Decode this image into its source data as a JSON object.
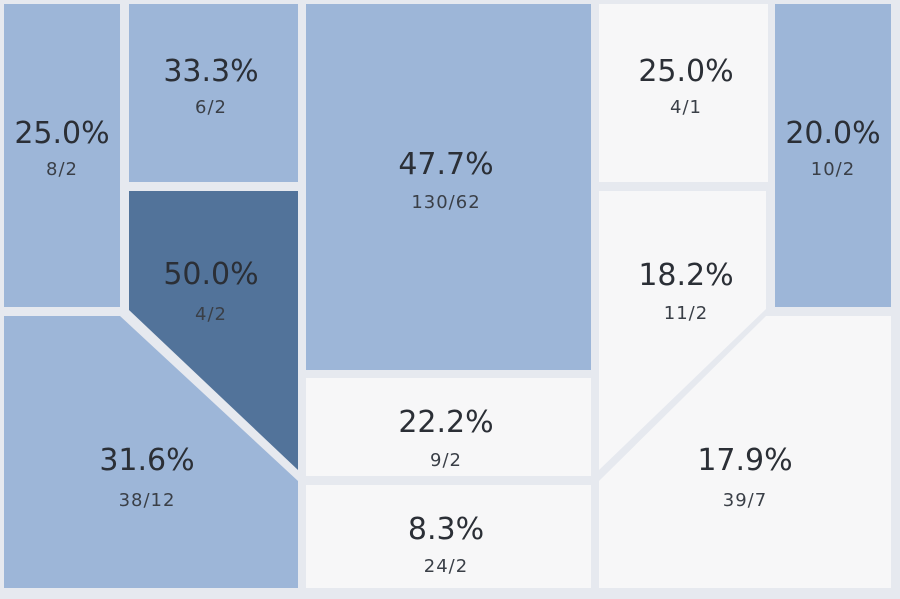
{
  "colors": {
    "background": "#e6e9ef",
    "blue": "#9db6d8",
    "dark_blue": "#52739a",
    "white": "#f7f7f8",
    "text": "#2b2f36"
  },
  "tiles": [
    {
      "name": "tile-25pct-8of2",
      "percent": "25.0%",
      "fraction": "8/2",
      "fill": "blue"
    },
    {
      "name": "tile-33pct-6of2",
      "percent": "33.3%",
      "fraction": "6/2",
      "fill": "blue"
    },
    {
      "name": "tile-50pct-4of2",
      "percent": "50.0%",
      "fraction": "4/2",
      "fill": "dark_blue"
    },
    {
      "name": "tile-31pct-38of12",
      "percent": "31.6%",
      "fraction": "38/12",
      "fill": "blue"
    },
    {
      "name": "tile-47pct-130of62",
      "percent": "47.7%",
      "fraction": "130/62",
      "fill": "blue"
    },
    {
      "name": "tile-22pct-9of2",
      "percent": "22.2%",
      "fraction": "9/2",
      "fill": "white"
    },
    {
      "name": "tile-8pct-24of2",
      "percent": "8.3%",
      "fraction": "24/2",
      "fill": "white"
    },
    {
      "name": "tile-25pct-4of1",
      "percent": "25.0%",
      "fraction": "4/1",
      "fill": "white"
    },
    {
      "name": "tile-18pct-11of2",
      "percent": "18.2%",
      "fraction": "11/2",
      "fill": "white"
    },
    {
      "name": "tile-20pct-10of2",
      "percent": "20.0%",
      "fraction": "10/2",
      "fill": "blue"
    },
    {
      "name": "tile-17pct-39of7",
      "percent": "17.9%",
      "fraction": "39/7",
      "fill": "white"
    }
  ]
}
